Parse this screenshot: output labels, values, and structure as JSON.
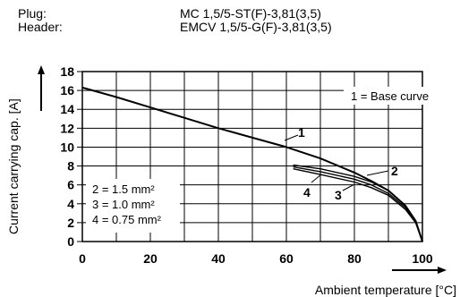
{
  "header": {
    "plug_label": "Plug:",
    "plug_value": "MC 1,5/5-ST(F)-3,81(3,5)",
    "header_label": "Header:",
    "header_value": "EMCV 1,5/5-G(F)-3,81(3,5)"
  },
  "chart_data": {
    "type": "line",
    "title": "",
    "xlabel": "Ambient temperature [°C]",
    "ylabel": "Current carrying cap. [A]",
    "xlim": [
      0,
      100
    ],
    "ylim": [
      0,
      18
    ],
    "x_ticks": [
      "0",
      "20",
      "40",
      "60",
      "80",
      "100"
    ],
    "y_ticks": [
      "0",
      "2",
      "4",
      "6",
      "8",
      "10",
      "12",
      "14",
      "16",
      "18"
    ],
    "grid": true,
    "annotations": {
      "base_curve_note": "1 = Base curve",
      "legend_2": "2 = 1.5 mm²",
      "legend_3": "3 = 1.0 mm²",
      "legend_4": "4 = 0.75 mm²"
    },
    "series": [
      {
        "name": "1",
        "x": [
          0,
          10,
          20,
          30,
          40,
          50,
          60,
          70,
          80,
          85,
          90,
          95,
          98,
          100
        ],
        "y": [
          16.3,
          15.3,
          14.2,
          13.1,
          12.0,
          11.0,
          10.0,
          8.8,
          7.3,
          6.4,
          5.4,
          3.8,
          2.2,
          0
        ]
      },
      {
        "name": "2",
        "x": [
          62,
          70,
          80,
          85,
          90,
          95,
          98,
          100
        ],
        "y": [
          8.1,
          7.7,
          6.9,
          6.3,
          5.4,
          3.8,
          2.2,
          0
        ]
      },
      {
        "name": "3",
        "x": [
          62,
          70,
          80,
          85,
          90,
          95,
          98,
          100
        ],
        "y": [
          7.9,
          7.4,
          6.6,
          6.0,
          5.1,
          3.6,
          2.1,
          0
        ]
      },
      {
        "name": "4",
        "x": [
          62,
          70,
          80,
          85,
          90,
          95,
          98,
          100
        ],
        "y": [
          7.7,
          7.1,
          6.3,
          5.7,
          4.9,
          3.4,
          2.0,
          0
        ]
      }
    ]
  }
}
